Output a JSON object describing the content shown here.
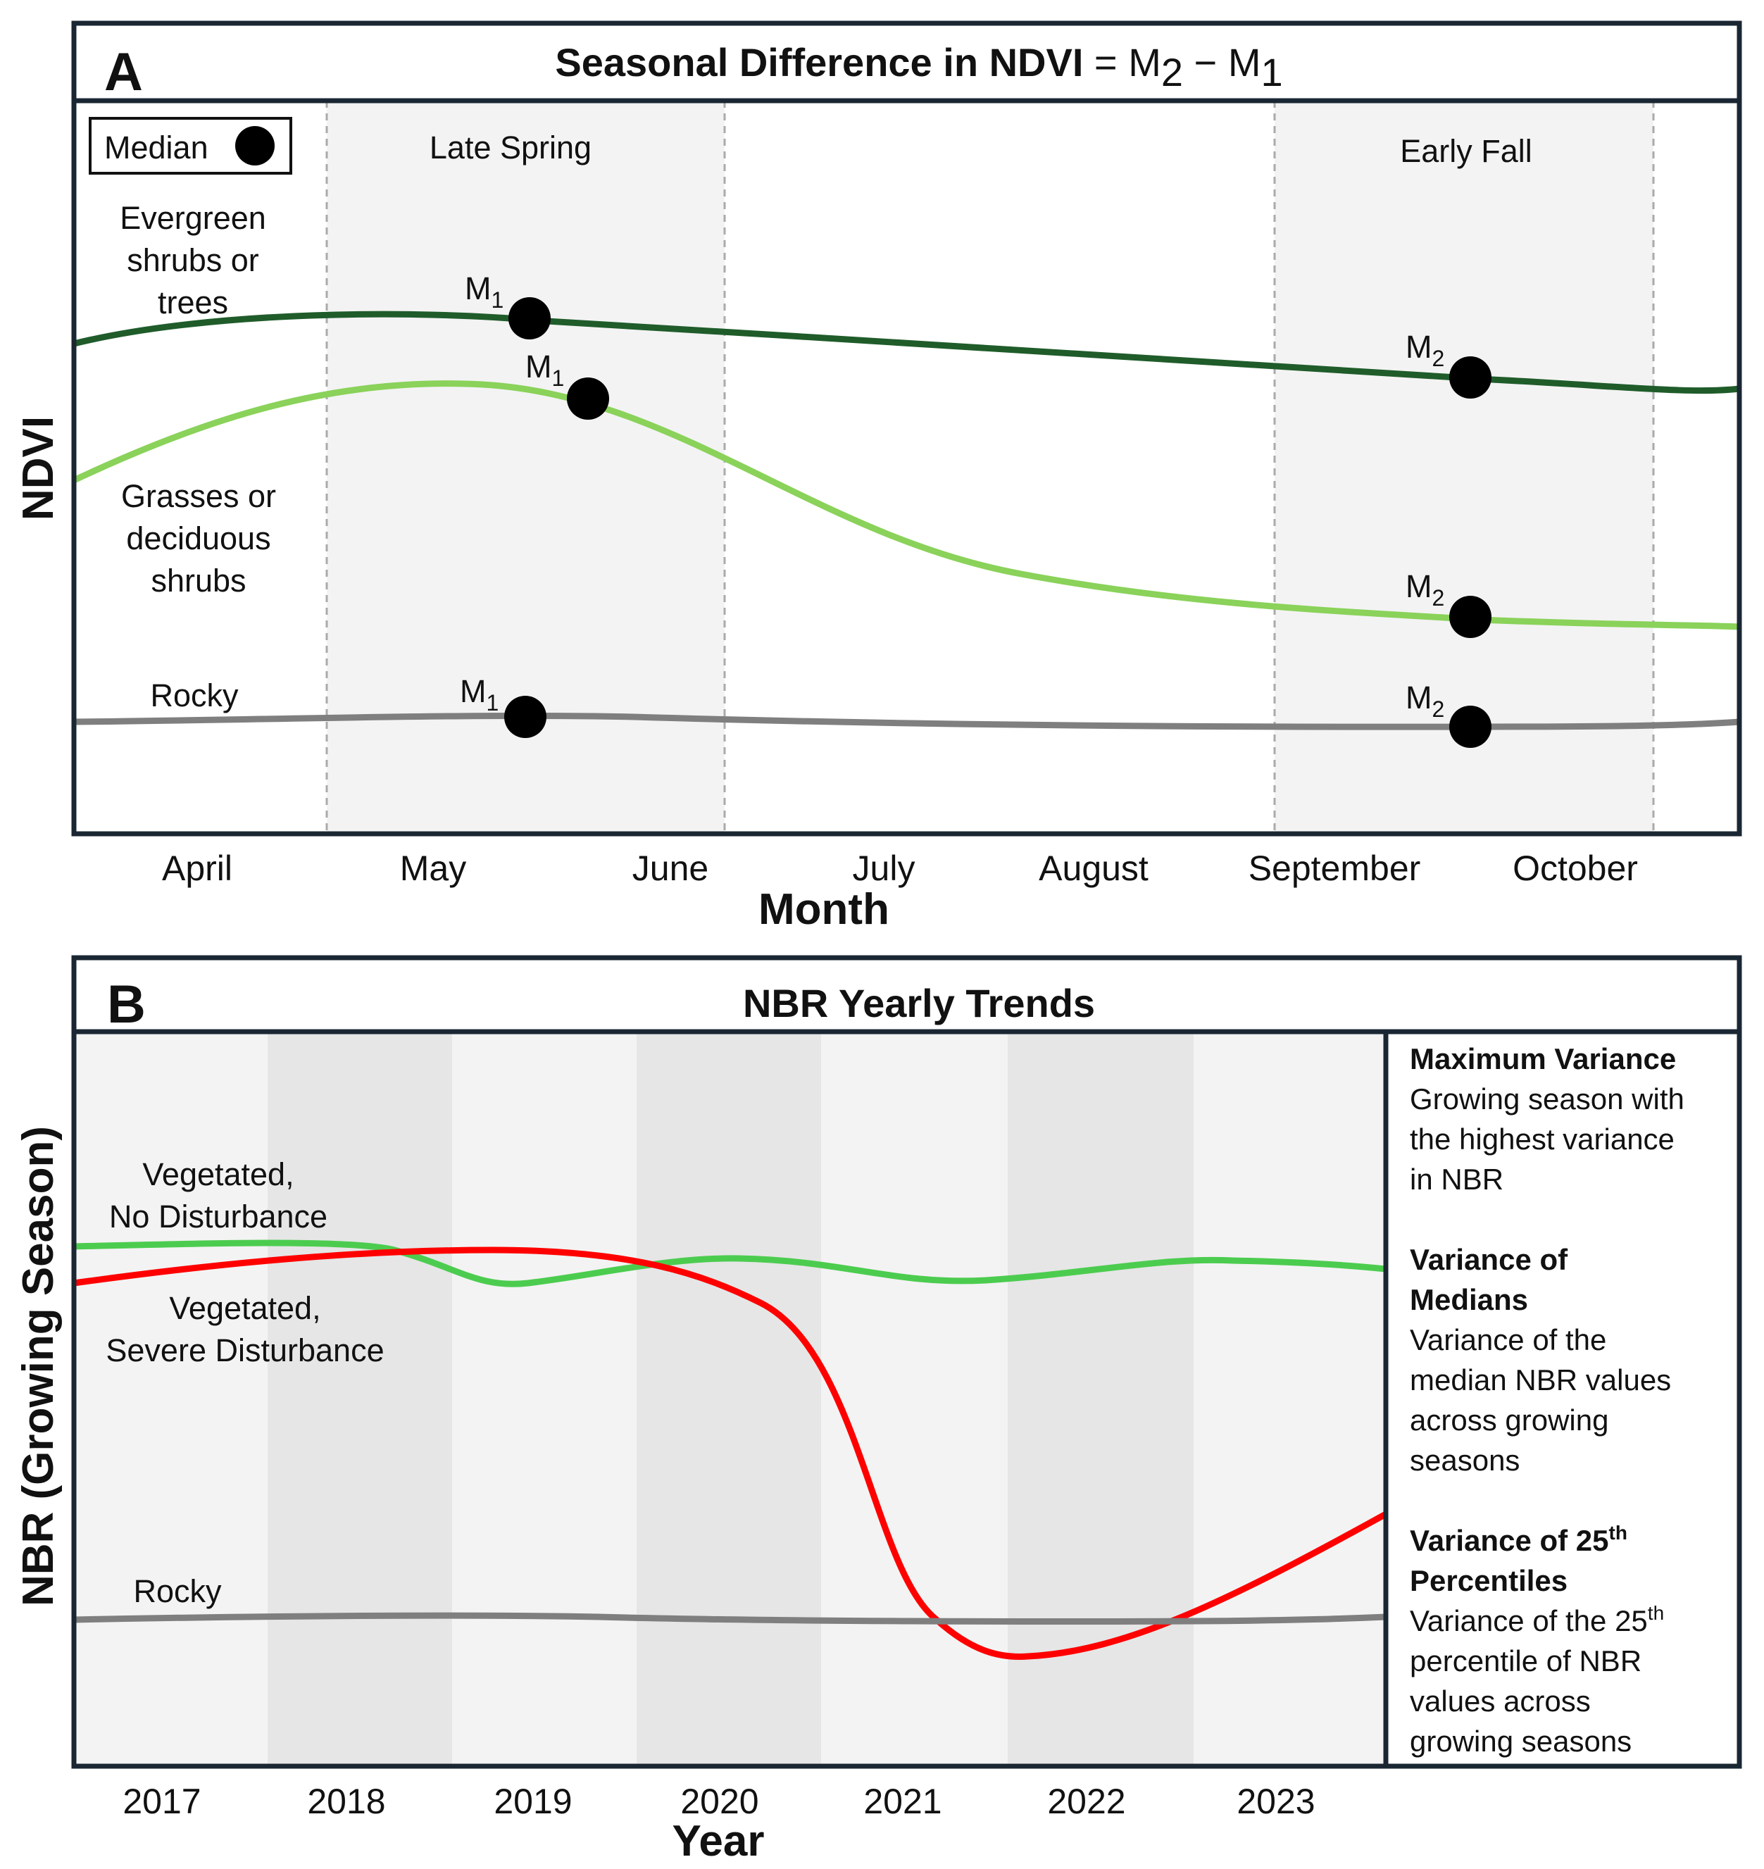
{
  "panel_a": {
    "letter": "A",
    "title": {
      "bold": "Seasonal Difference in NDVI",
      "eq": " = M",
      "sub2": "2",
      "minus": " − M",
      "sub1": "1"
    },
    "legend": {
      "label": "Median"
    },
    "season_labels": {
      "late_spring": "Late Spring",
      "early_fall": "Early Fall"
    },
    "series_labels": {
      "evergreen": [
        "Evergreen",
        "shrubs or",
        "trees"
      ],
      "grasses": [
        "Grasses or",
        "deciduous",
        "shrubs"
      ],
      "rocky": "Rocky"
    },
    "marker_labels": {
      "m1": "M",
      "m2": "M",
      "sub1": "1",
      "sub2": "2"
    },
    "xlabel": "Month",
    "ylabel": "NDVI",
    "ticks": [
      "April",
      "May",
      "June",
      "July",
      "August",
      "September",
      "October"
    ]
  },
  "panel_b": {
    "letter": "B",
    "title": "NBR Yearly Trends",
    "xlabel": "Year",
    "ylabel": "NBR (Growing Season)",
    "ticks": [
      "2017",
      "2018",
      "2019",
      "2020",
      "2021",
      "2022",
      "2023"
    ],
    "series_labels": {
      "no_disturbance": [
        "Vegetated,",
        "No Disturbance"
      ],
      "severe": [
        "Vegetated,",
        "Severe Disturbance"
      ],
      "rocky": "Rocky"
    },
    "sidebar": {
      "max_variance_title": "Maximum Variance",
      "max_variance_desc": [
        "Growing season with",
        "the highest variance",
        "in NBR"
      ],
      "var_medians_title": [
        "Variance of",
        "Medians"
      ],
      "var_medians_desc": [
        "Variance of the",
        "median NBR values",
        "across growing",
        "seasons"
      ],
      "var_p25_title_a": "Variance of 25",
      "var_p25_title_sup": "th",
      "var_p25_title_b": "Percentiles",
      "var_p25_desc_a": "Variance of the 25",
      "var_p25_desc_sup": "th",
      "var_p25_desc": [
        "percentile of NBR",
        "values across",
        "growing seasons"
      ]
    }
  },
  "colors": {
    "evergreen": "#1f5c2a",
    "grasses": "#8ad25a",
    "rocky": "#7f7f7f",
    "no_disturbance": "#4ccc4f",
    "severe": "#ff0000",
    "frame": "#1a2733",
    "shade_light": "#f3f3f3",
    "shade_dark": "#e6e6e6"
  }
}
